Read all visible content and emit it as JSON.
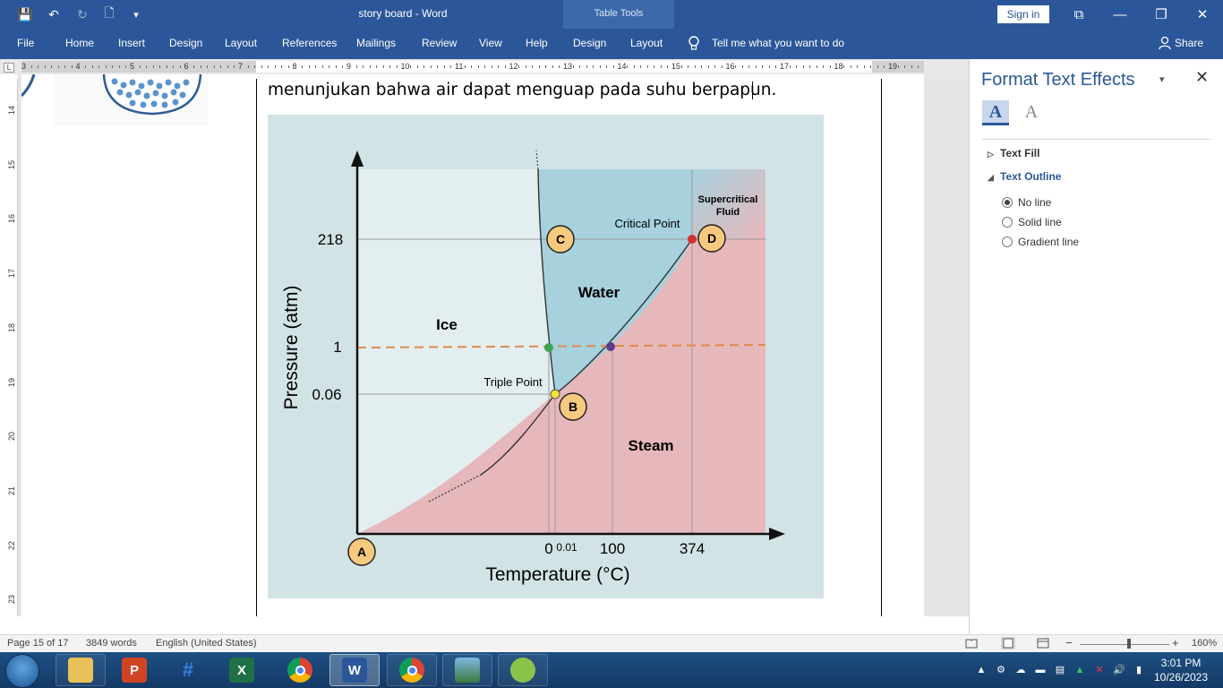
{
  "window": {
    "doc_title": "story board  -  Word",
    "table_tools": "Table Tools",
    "sign_in": "Sign in",
    "minimize_glyph": "—",
    "restore_glyph": "❐",
    "close_glyph": "✕",
    "ribbon_display_glyph": "⧉"
  },
  "quick_access": {
    "save_glyph": "💾",
    "undo_glyph": "↶",
    "redo_glyph": "↻",
    "new_glyph": "🗋",
    "customize_glyph": "▾"
  },
  "ribbon": {
    "tabs": [
      "File",
      "Home",
      "Insert",
      "Design",
      "Layout",
      "References",
      "Mailings",
      "Review",
      "View",
      "Help",
      "Design",
      "Layout"
    ],
    "tell_me": "Tell me what you want to do",
    "share": "Share"
  },
  "ruler": {
    "corner": "L",
    "h_numbers": [
      "3",
      "4",
      "5",
      "6",
      "7",
      "8",
      "9",
      "10",
      "11",
      "12",
      "13",
      "14",
      "15",
      "16",
      "17",
      "18",
      "19"
    ],
    "v_numbers": [
      "14",
      "15",
      "16",
      "17",
      "18",
      "19",
      "20",
      "21",
      "22",
      "23"
    ]
  },
  "document": {
    "body_text": "menunjukan bahwa air dapat menguap pada suhu berpapun."
  },
  "chart_data": {
    "type": "diagram",
    "title": "",
    "xlabel": "Temperature  (°C)",
    "ylabel": "Pressure  (atm)",
    "x_ticks": [
      "0",
      "0.01",
      "100",
      "374"
    ],
    "y_ticks": [
      "218",
      "1",
      "0.06"
    ],
    "regions": [
      "Ice",
      "Water",
      "Steam",
      "Supercritical Fluid"
    ],
    "region_labels": {
      "ice": "Ice",
      "water": "Water",
      "steam": "Steam",
      "supercritical_1": "Supercritical",
      "supercritical_2": "Fluid"
    },
    "annotations": {
      "critical_point": "Critical Point",
      "triple_point": "Triple Point"
    },
    "points": [
      {
        "label": "A",
        "temperature": -273,
        "pressure": 0
      },
      {
        "label": "B",
        "temperature": 0.01,
        "pressure": 0.06
      },
      {
        "label": "C",
        "temperature": 0,
        "pressure": 218
      },
      {
        "label": "D",
        "temperature": 374,
        "pressure": 218
      }
    ],
    "colors": {
      "background": "#d2e3e6",
      "ice": "#e3eef0",
      "water": "#a6d1dd",
      "steam": "#e7b8bb",
      "dashed_line": "#e08a4a",
      "critical_dot": "#d32f2f",
      "triple_dot": "#f4e23a",
      "melt_dot": "#3fa34d",
      "boil_dot": "#5a3d8c",
      "marker_fill": "#f7c97e"
    }
  },
  "format_pane": {
    "title": "Format Text Effects",
    "dropdown_glyph": "▾",
    "close_glyph": "✕",
    "tab_fill_glyph": "A",
    "tab_effects_glyph": "A",
    "sections": [
      {
        "label": "Text Fill",
        "arrow": "▷"
      },
      {
        "label": "Text Outline",
        "arrow": "◢"
      }
    ],
    "outline_options": [
      "No line",
      "Solid line",
      "Gradient line"
    ],
    "selected_option": "No line"
  },
  "status": {
    "page": "Page 15 of 17",
    "words": "3849 words",
    "language": "English (United States)",
    "zoom_out_glyph": "−",
    "zoom_in_glyph": "+",
    "zoom": "160%",
    "zoom_level": 0.55
  },
  "taskbar": {
    "apps": [
      "file-explorer",
      "powerpoint",
      "hashtag-app",
      "excel",
      "chrome",
      "word",
      "chrome-profile",
      "photo-app",
      "app"
    ],
    "time": "3:01 PM",
    "date": "10/26/2023"
  }
}
